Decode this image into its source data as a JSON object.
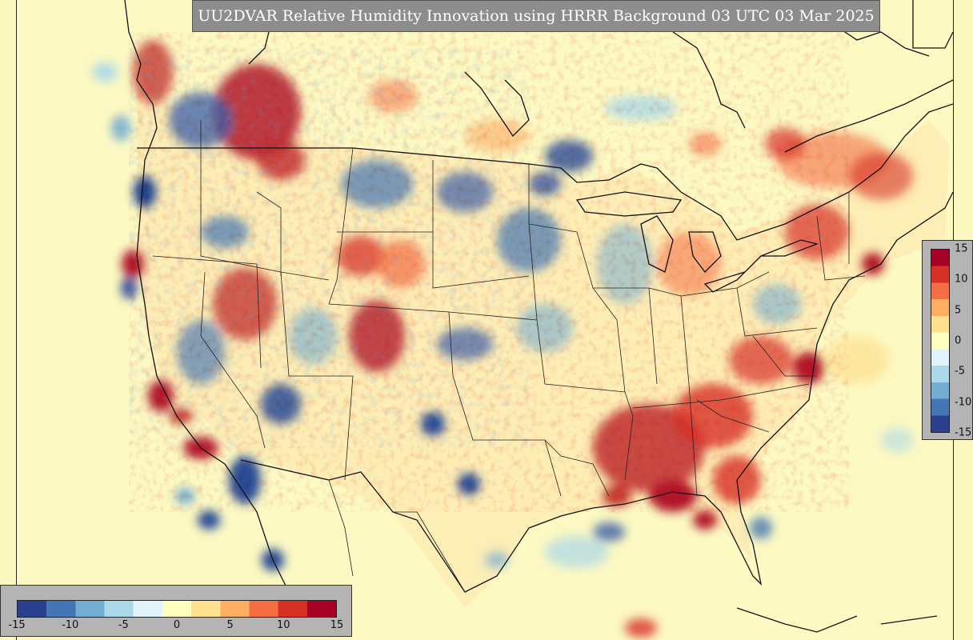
{
  "title": "UU2DVAR Relative Humidity Innovation using HRRR Background 03 UTC 03 Mar 2025",
  "colorbar": {
    "horizontal_ticks": [
      "-15",
      "-10",
      "-5",
      "0",
      "5",
      "10",
      "15"
    ],
    "vertical_ticks": [
      "15",
      "10",
      "5",
      "0",
      "-5",
      "-10",
      "-15"
    ],
    "range": [
      -15,
      15
    ],
    "colors": [
      "#2b3f8f",
      "#4575b4",
      "#74add1",
      "#abd9e9",
      "#e0f3f8",
      "#ffffbf",
      "#fee090",
      "#fdae61",
      "#f46d43",
      "#d73027",
      "#a50026"
    ]
  },
  "map": {
    "background": "#fcf9c3",
    "boundary_color": "#111111"
  }
}
